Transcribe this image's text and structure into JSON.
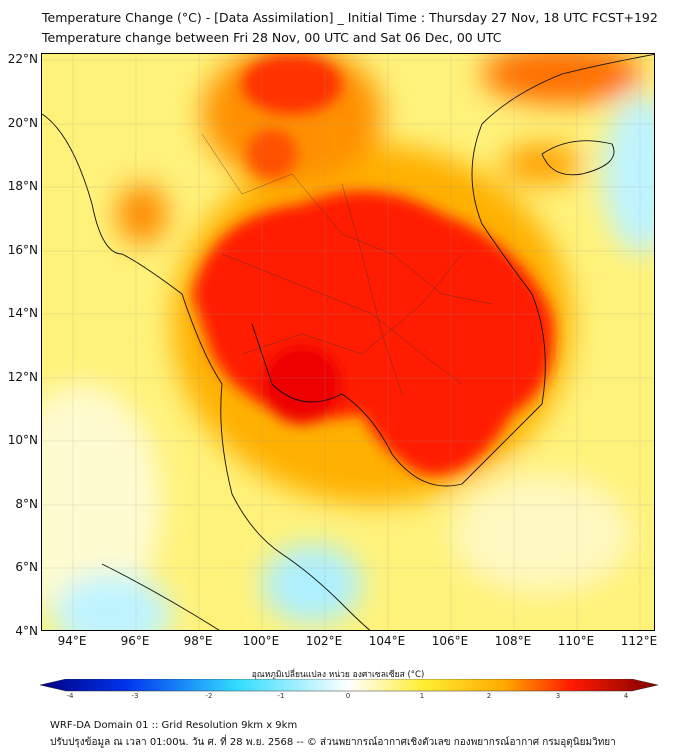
{
  "title": {
    "line1": "Temperature Change (°C) - [Data Assimilation] _ Initial Time : Thursday 27 Nov, 18 UTC FCST+192",
    "line2": "Temperature change between Fri 28 Nov, 00 UTC and Sat 06 Dec, 00 UTC"
  },
  "axes": {
    "lat_labels": [
      "22°N",
      "20°N",
      "18°N",
      "16°N",
      "14°N",
      "12°N",
      "10°N",
      "8°N",
      "6°N",
      "4°N"
    ],
    "lon_labels": [
      "94°E",
      "96°E",
      "98°E",
      "100°E",
      "102°E",
      "104°E",
      "106°E",
      "108°E",
      "110°E",
      "112°E"
    ]
  },
  "colorbar": {
    "label": "อุณหภูมิเปลี่ยนแปลง หน่วย องศาเซลเซียส (°C)",
    "ticks": [
      "-4",
      "-3",
      "-2",
      "-1",
      "0",
      "1",
      "2",
      "3",
      "4"
    ],
    "range": [
      -4,
      4
    ],
    "colors": [
      "#00007f",
      "#0040ff",
      "#33ddff",
      "#ffffff",
      "#ffee33",
      "#ffaa00",
      "#ff1a00",
      "#7f0000"
    ]
  },
  "footer": {
    "line1": "WRF-DA Domain 01 :: Grid Resolution 9km x 9km",
    "line2": "ปรับปรุงข้อมูล ณ เวลา 01:00น. วัน ศ. ที่ 28 พ.ย. 2568 -- © ส่วนพยากรณ์อากาศเชิงตัวเลข กองพยากรณ์อากาศ กรมอุตุนิยมวิทยา"
  }
}
